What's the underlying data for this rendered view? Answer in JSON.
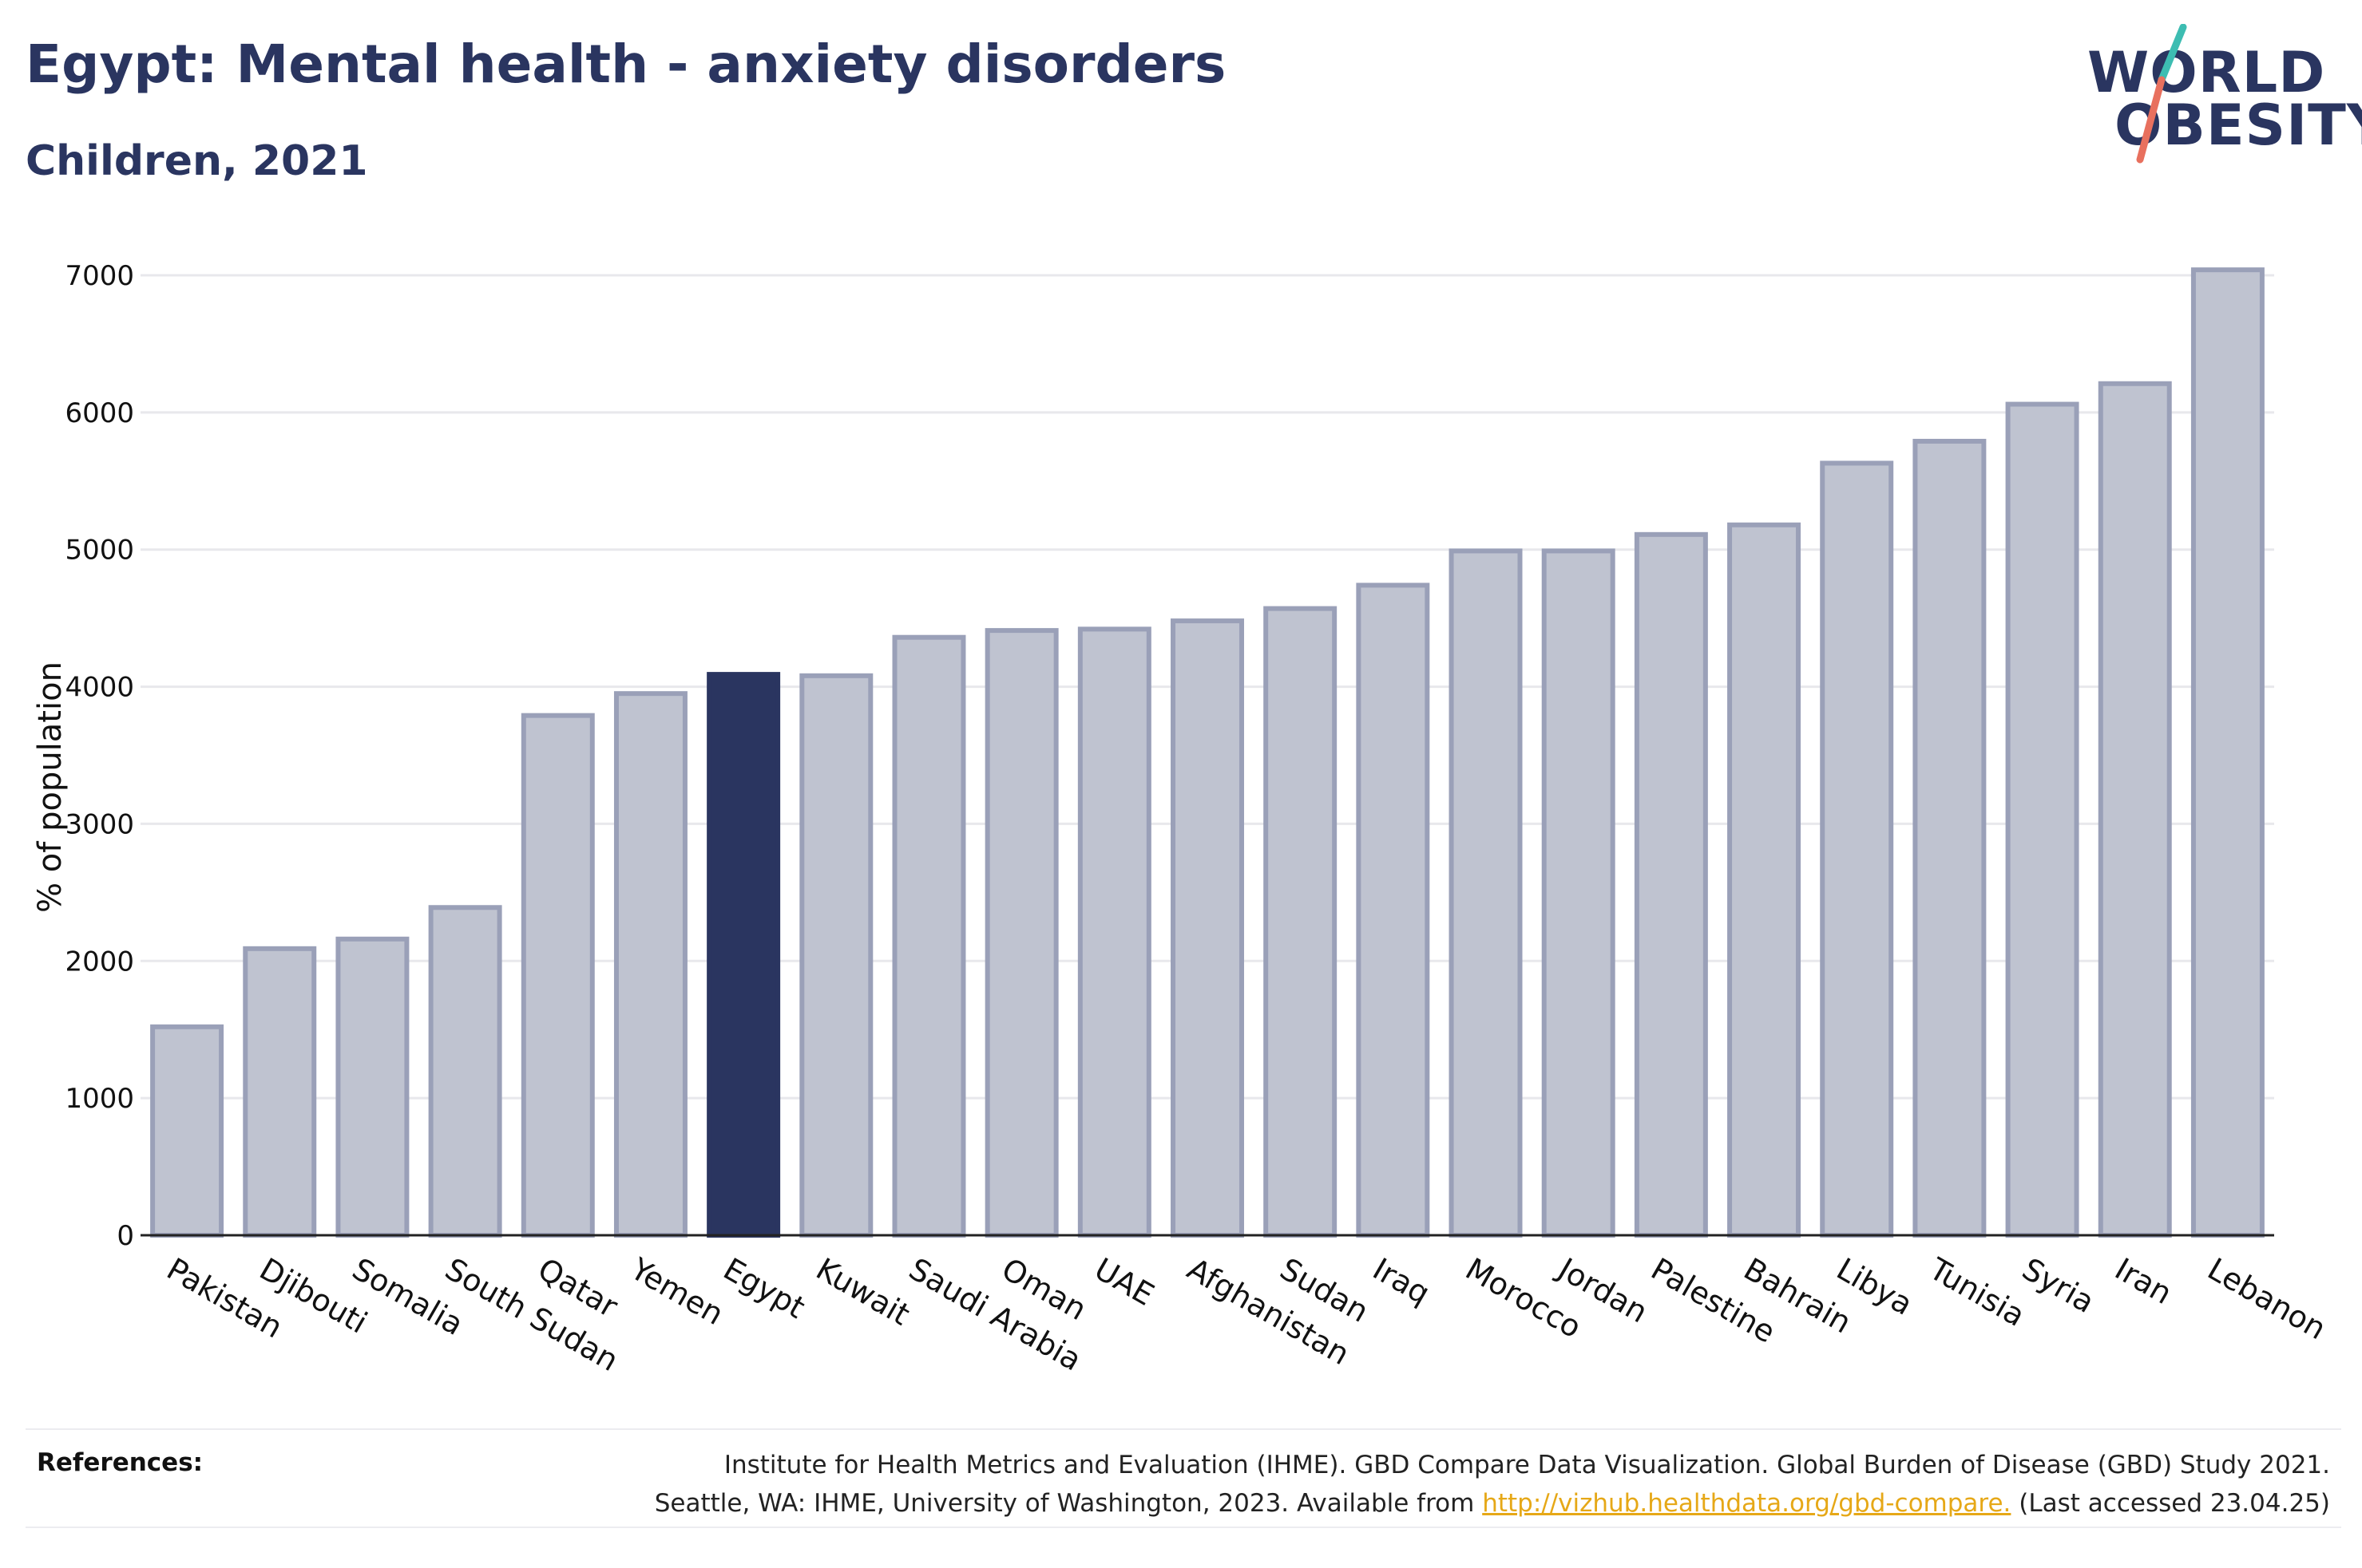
{
  "header": {
    "title": "Egypt: Mental health - anxiety disorders",
    "subtitle": "Children, 2021"
  },
  "logo": {
    "line1": "WORLD",
    "line2": "OBESITY",
    "slash_color_top": "#3dbdb2",
    "slash_color_bottom": "#e8705e"
  },
  "colors": {
    "highlight_bar": "#2a3560",
    "bar_fill": "#bfc3d0",
    "bar_stroke": "#9aa0b8",
    "grid": "#e8e8ec",
    "text": "#2a3560"
  },
  "chart_data": {
    "type": "bar",
    "ylabel": "% of population",
    "xlabel": "",
    "ylim": [
      0,
      7000
    ],
    "yticks": [
      0,
      1000,
      2000,
      3000,
      4000,
      5000,
      6000,
      7000
    ],
    "grid": true,
    "highlight": "Egypt",
    "categories": [
      "Pakistan",
      "Djibouti",
      "Somalia",
      "South Sudan",
      "Qatar",
      "Yemen",
      "Egypt",
      "Kuwait",
      "Saudi Arabia",
      "Oman",
      "UAE",
      "Afghanistan",
      "Sudan",
      "Iraq",
      "Morocco",
      "Jordan",
      "Palestine",
      "Bahrain",
      "Libya",
      "Tunisia",
      "Syria",
      "Iran",
      "Lebanon"
    ],
    "values": [
      1520,
      2090,
      2160,
      2390,
      3790,
      3950,
      4090,
      4080,
      4360,
      4410,
      4420,
      4480,
      4570,
      4740,
      4990,
      4990,
      5110,
      5180,
      5630,
      5790,
      6060,
      6210,
      7040
    ]
  },
  "footer": {
    "refs_label": "References:",
    "refs_line1": "Institute for Health Metrics and Evaluation (IHME). GBD Compare Data Visualization. Global Burden of Disease (GBD) Study 2021.",
    "refs_line2_prefix": "Seattle, WA: IHME, University of Washington, 2023. Available from ",
    "refs_link": "http://vizhub.healthdata.org/gbd-compare.",
    "refs_line2_suffix": " (Last accessed 23.04.25)"
  }
}
